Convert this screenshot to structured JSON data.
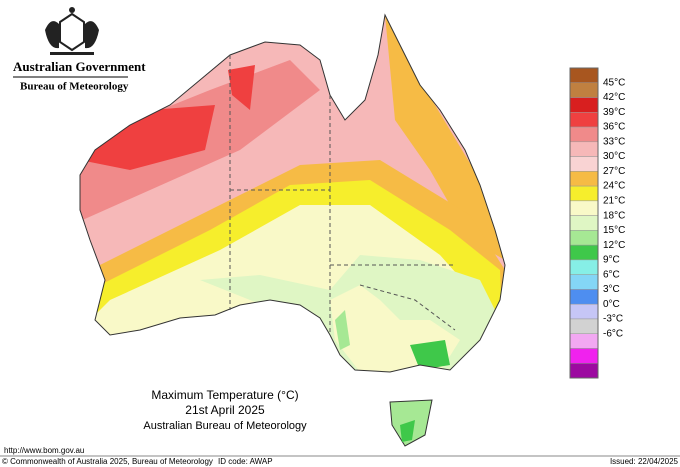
{
  "header": {
    "government": "Australian Government",
    "agency": "Bureau of Meteorology"
  },
  "map": {
    "title": "Maximum Temperature (°C)",
    "date": "21st April 2025",
    "source": "Australian Bureau of Meteorology"
  },
  "legend": {
    "colors": [
      "#a8561f",
      "#c08040",
      "#d81f1f",
      "#ef4040",
      "#f08a8a",
      "#f6b8b8",
      "#f9d3d3",
      "#f6bb45",
      "#f6ee2c",
      "#f9f9c8",
      "#dff6c4",
      "#a6e894",
      "#3fc84a",
      "#86efe6",
      "#84d6f6",
      "#4e8ef0",
      "#c6c6f6",
      "#d2d2d2",
      "#f2a8f2",
      "#f022ee",
      "#9c0aa0"
    ],
    "labels": [
      "45°C",
      "42°C",
      "39°C",
      "36°C",
      "33°C",
      "30°C",
      "27°C",
      "24°C",
      "21°C",
      "18°C",
      "15°C",
      "12°C",
      "9°C",
      "6°C",
      "3°C",
      "0°C",
      "-3°C",
      "-6°C"
    ]
  },
  "footer": {
    "url": "http://www.bom.gov.au",
    "copyright": "© Commonwealth of Australia 2025, Bureau of Meteorology",
    "id_code": "ID code: AWAP",
    "issued": "Issued: 22/04/2025"
  }
}
